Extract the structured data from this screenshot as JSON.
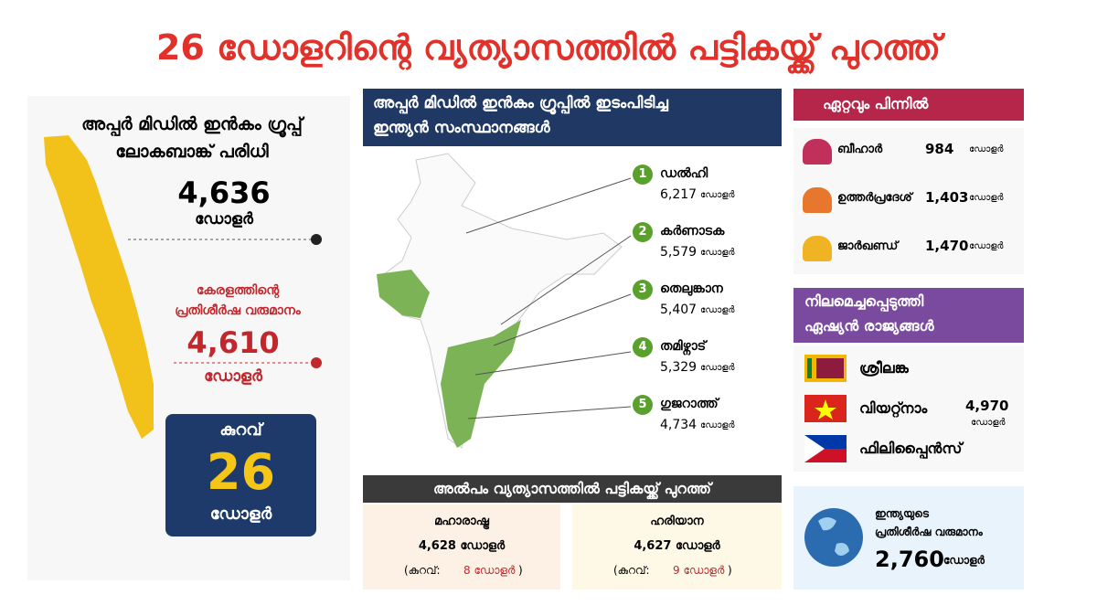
{
  "title": "26 ഡോളറിന്റെ വ്യത്യാസത്തിൽ പട്ടികയ്ക്ക് പുറത്ത്",
  "threshold_panel": {
    "heading": [
      "അപ്പർ മിഡിൽ ഇൻകം ഗ്രൂപ്പ്",
      "ലോകബാങ്ക് പരിധി"
    ],
    "threshold_value": "4,636",
    "threshold_unit": "ഡോളർ",
    "kerala_label": [
      "കേരളത്തിന്റെ",
      "പ്രതിശീർഷ വരുമാനം"
    ],
    "kerala_value": "4,610",
    "kerala_unit": "ഡോളർ",
    "gap": {
      "label": "കുറവ്",
      "value": "26",
      "unit": "ഡോളർ"
    }
  },
  "states_panel": {
    "heading": [
      "അപ്പർ മിഡിൽ ഇൻകം ഗ്രൂപ്പിൽ ഇടംപിടിച്ച",
      "ഇന്ത്യൻ സംസ്ഥാനങ്ങൾ"
    ],
    "states": [
      {
        "rank": "1",
        "name": "ഡൽഹി",
        "value": "6,217",
        "unit": "ഡോളർ"
      },
      {
        "rank": "2",
        "name": "കർണാടക",
        "value": "5,579",
        "unit": "ഡോളർ"
      },
      {
        "rank": "3",
        "name": "തെലുങ്കാന",
        "value": "5,407",
        "unit": "ഡോളർ"
      },
      {
        "rank": "4",
        "name": "തമിഴ്നാട്",
        "value": "5,329",
        "unit": "ഡോളർ"
      },
      {
        "rank": "5",
        "name": "ഗുജറാത്ത്",
        "value": "4,734",
        "unit": "ഡോളർ"
      }
    ]
  },
  "near_miss": {
    "heading": "അൽപം വ്യത്യാസത്തിൽ പട്ടികയ്ക്ക് പുറത്ത്",
    "states": [
      {
        "name": "മഹാരാഷ്ട്ര",
        "value": "4,628 ഡോളർ",
        "gap_open": "(കുറവ്:",
        "gap_value": "8 ഡോളർ",
        "gap_close": ")"
      },
      {
        "name": "ഹരിയാന",
        "value": "4,627 ഡോളർ",
        "gap_open": "(കുറവ്:",
        "gap_value": "9 ഡോളർ",
        "gap_close": ")"
      }
    ]
  },
  "lowest": {
    "heading": "ഏറ്റവും പിന്നിൽ",
    "states": [
      {
        "name": "ബീഹാർ",
        "value": "984",
        "unit": "ഡോളർ",
        "color": "#c0305a"
      },
      {
        "name": "ഉത്തർപ്രദേശ്",
        "value": "1,403",
        "unit": "ഡോളർ",
        "color": "#e8772e"
      },
      {
        "name": "ജാർഖണ്ഡ്",
        "value": "1,470",
        "unit": "ഡോളർ",
        "color": "#f0b323"
      }
    ]
  },
  "asian": {
    "heading": [
      "നിലമെച്ചപ്പെടുത്തി",
      "ഏഷ്യൻ രാജ്യങ്ങൾ"
    ],
    "countries": [
      "ശ്രീലങ്ക",
      "വിയറ്റ്നാം",
      "ഫിലിപ്പൈൻസ്"
    ],
    "value": "4,970",
    "unit": "ഡോളർ"
  },
  "india": {
    "label": [
      "ഇന്ത്യയുടെ",
      "പ്രതിശീർഷ വരുമാനം"
    ],
    "value": "2,760",
    "unit": "ഡോളർ"
  }
}
